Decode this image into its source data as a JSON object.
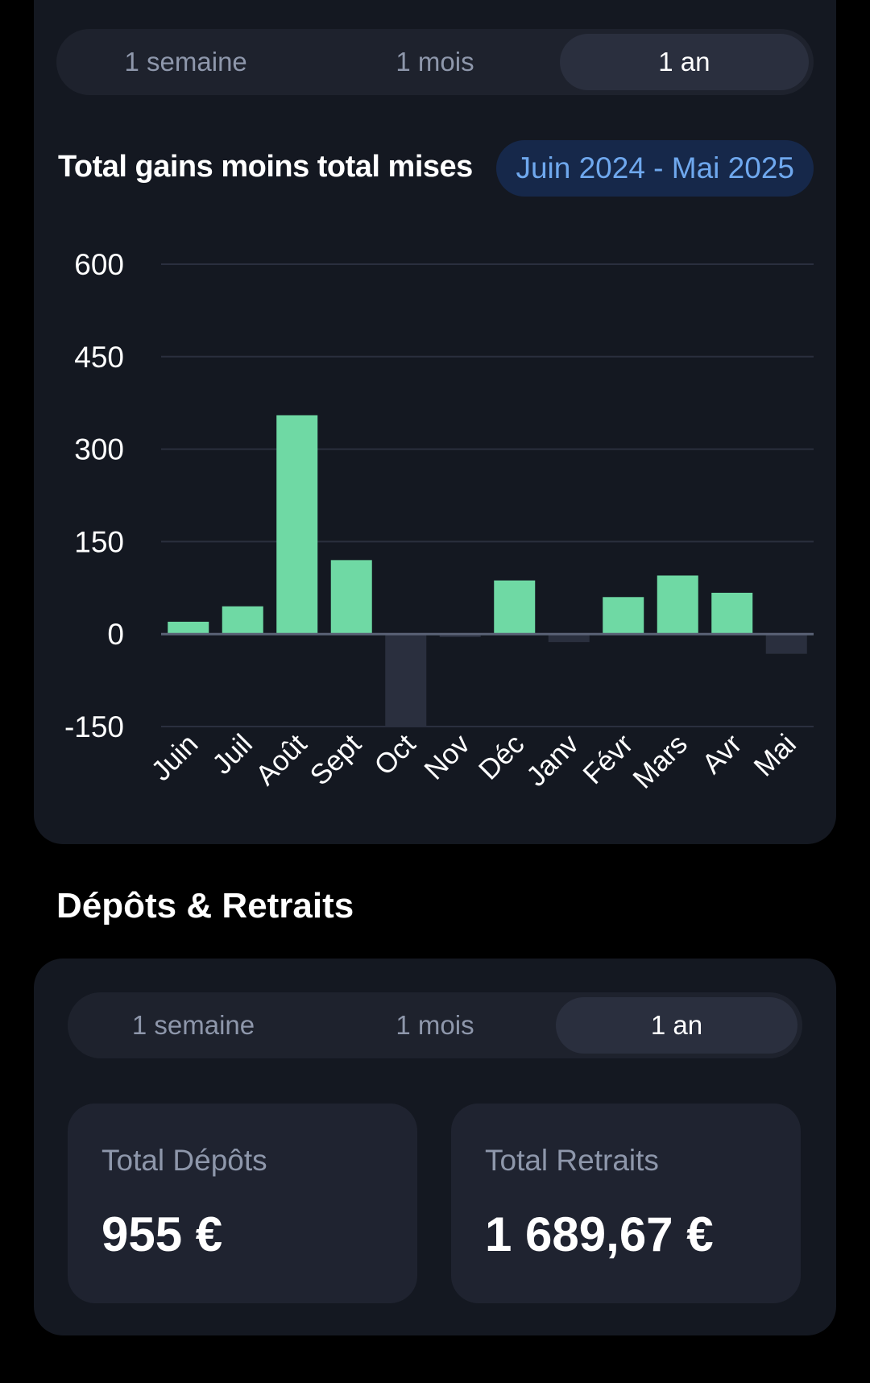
{
  "colors": {
    "positive_bar": "#6fd9a4",
    "negative_bar": "#2a2f3e",
    "grid": "#2a2f3e",
    "zero_line": "#5a6276",
    "axis_text": "#ffffff",
    "badge_text": "#6fa8ee"
  },
  "gains_card": {
    "periods": [
      "1 semaine",
      "1 mois",
      "1 an"
    ],
    "active_period": "1 an",
    "title": "Total gains moins total mises",
    "date_range": "Juin 2024 - Mai 2025"
  },
  "chart_data": {
    "type": "bar",
    "title": "Total gains moins total mises",
    "categories": [
      "Juin",
      "Juil",
      "Août",
      "Sept",
      "Oct",
      "Nov",
      "Déc",
      "Janv",
      "Févr",
      "Mars",
      "Avr",
      "Mai"
    ],
    "values": [
      20,
      45,
      355,
      120,
      -150,
      -5,
      87,
      -13,
      60,
      95,
      67,
      -32
    ],
    "ylim": [
      -150,
      600
    ],
    "yticks": [
      600,
      450,
      300,
      150,
      0,
      -150
    ],
    "grid": true,
    "xlabel": "",
    "ylabel": ""
  },
  "deposits_section": {
    "title": "Dépôts & Retraits",
    "periods": [
      "1 semaine",
      "1 mois",
      "1 an"
    ],
    "active_period": "1 an",
    "total_deposits_label": "Total Dépôts",
    "total_deposits_value": "955 €",
    "total_withdrawals_label": "Total Retraits",
    "total_withdrawals_value": "1 689,67 €"
  }
}
